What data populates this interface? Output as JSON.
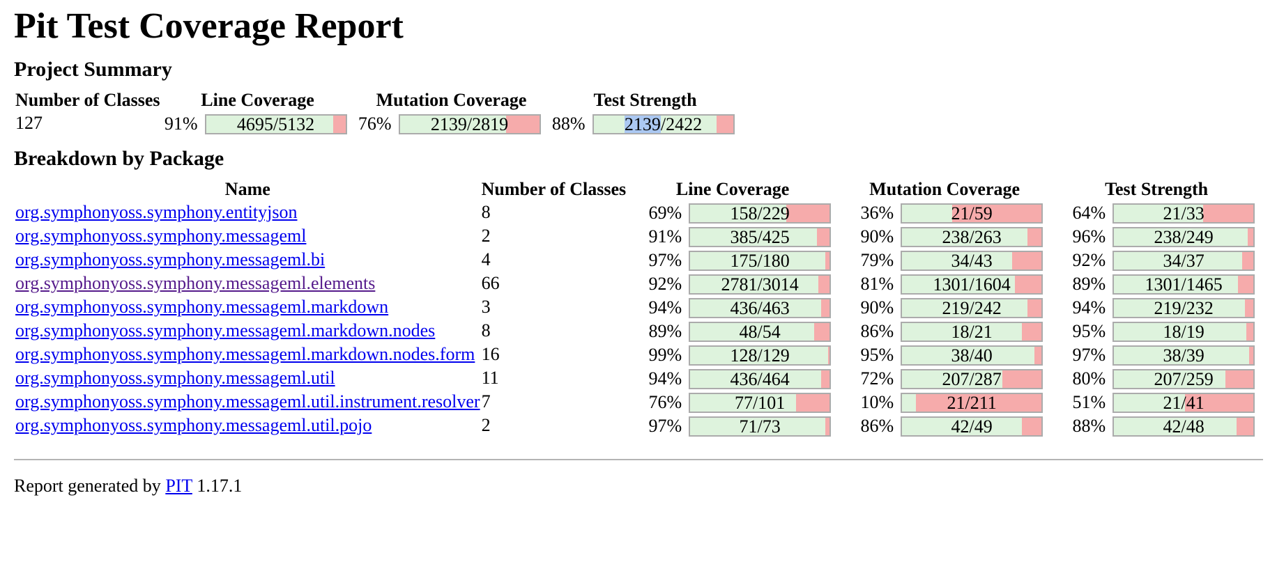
{
  "page": {
    "title": "Pit Test Coverage Report"
  },
  "colors": {
    "covered_green": "#def3dd",
    "uncovered_red": "#f6abab",
    "bar_border": "#ababab",
    "link_blue": "#0000EE",
    "link_visited_purple": "#551A8B",
    "selection_blue": "#abc8f2"
  },
  "project_summary": {
    "heading": "Project Summary",
    "columns": [
      "Number of Classes",
      "Line Coverage",
      "Mutation Coverage",
      "Test Strength"
    ],
    "number_of_classes": "127",
    "line": {
      "pct": "91%",
      "fill": 91,
      "legend": "4695/5132"
    },
    "mutation": {
      "pct": "76%",
      "fill": 76,
      "legend": "2139/2819"
    },
    "test": {
      "pct": "88%",
      "fill": 88,
      "legend_selected": "2139",
      "legend_rest": "/2422"
    }
  },
  "breakdown": {
    "heading": "Breakdown by Package",
    "columns": [
      "Name",
      "Number of Classes",
      "Line Coverage",
      "Mutation Coverage",
      "Test Strength"
    ],
    "rows": [
      {
        "name": "org.symphonyoss.symphony.entityjson",
        "visited": false,
        "classes": "8",
        "line": {
          "pct": "69%",
          "fill": 69,
          "legend": "158/229"
        },
        "mutation": {
          "pct": "36%",
          "fill": 36,
          "legend": "21/59"
        },
        "test": {
          "pct": "64%",
          "fill": 64,
          "legend": "21/33"
        }
      },
      {
        "name": "org.symphonyoss.symphony.messageml",
        "visited": false,
        "classes": "2",
        "line": {
          "pct": "91%",
          "fill": 91,
          "legend": "385/425"
        },
        "mutation": {
          "pct": "90%",
          "fill": 90,
          "legend": "238/263"
        },
        "test": {
          "pct": "96%",
          "fill": 96,
          "legend": "238/249"
        }
      },
      {
        "name": "org.symphonyoss.symphony.messageml.bi",
        "visited": false,
        "classes": "4",
        "line": {
          "pct": "97%",
          "fill": 97,
          "legend": "175/180"
        },
        "mutation": {
          "pct": "79%",
          "fill": 79,
          "legend": "34/43"
        },
        "test": {
          "pct": "92%",
          "fill": 92,
          "legend": "34/37"
        }
      },
      {
        "name": "org.symphonyoss.symphony.messageml.elements",
        "visited": true,
        "classes": "66",
        "line": {
          "pct": "92%",
          "fill": 92,
          "legend": "2781/3014"
        },
        "mutation": {
          "pct": "81%",
          "fill": 81,
          "legend": "1301/1604"
        },
        "test": {
          "pct": "89%",
          "fill": 89,
          "legend": "1301/1465"
        }
      },
      {
        "name": "org.symphonyoss.symphony.messageml.markdown",
        "visited": false,
        "classes": "3",
        "line": {
          "pct": "94%",
          "fill": 94,
          "legend": "436/463"
        },
        "mutation": {
          "pct": "90%",
          "fill": 90,
          "legend": "219/242"
        },
        "test": {
          "pct": "94%",
          "fill": 94,
          "legend": "219/232"
        }
      },
      {
        "name": "org.symphonyoss.symphony.messageml.markdown.nodes",
        "visited": false,
        "classes": "8",
        "line": {
          "pct": "89%",
          "fill": 89,
          "legend": "48/54"
        },
        "mutation": {
          "pct": "86%",
          "fill": 86,
          "legend": "18/21"
        },
        "test": {
          "pct": "95%",
          "fill": 95,
          "legend": "18/19"
        }
      },
      {
        "name": "org.symphonyoss.symphony.messageml.markdown.nodes.form",
        "visited": false,
        "classes": "16",
        "line": {
          "pct": "99%",
          "fill": 99,
          "legend": "128/129"
        },
        "mutation": {
          "pct": "95%",
          "fill": 95,
          "legend": "38/40"
        },
        "test": {
          "pct": "97%",
          "fill": 97,
          "legend": "38/39"
        }
      },
      {
        "name": "org.symphonyoss.symphony.messageml.util",
        "visited": false,
        "classes": "11",
        "line": {
          "pct": "94%",
          "fill": 94,
          "legend": "436/464"
        },
        "mutation": {
          "pct": "72%",
          "fill": 72,
          "legend": "207/287"
        },
        "test": {
          "pct": "80%",
          "fill": 80,
          "legend": "207/259"
        }
      },
      {
        "name": "org.symphonyoss.symphony.messageml.util.instrument.resolver",
        "visited": false,
        "classes": "7",
        "line": {
          "pct": "76%",
          "fill": 76,
          "legend": "77/101"
        },
        "mutation": {
          "pct": "10%",
          "fill": 10,
          "legend": "21/211"
        },
        "test": {
          "pct": "51%",
          "fill": 51,
          "legend": "21/41"
        }
      },
      {
        "name": "org.symphonyoss.symphony.messageml.util.pojo",
        "visited": false,
        "classes": "2",
        "line": {
          "pct": "97%",
          "fill": 97,
          "legend": "71/73"
        },
        "mutation": {
          "pct": "86%",
          "fill": 86,
          "legend": "42/49"
        },
        "test": {
          "pct": "88%",
          "fill": 88,
          "legend": "42/48"
        }
      }
    ]
  },
  "footer": {
    "prefix": "Report generated by ",
    "link_label": "PIT",
    "suffix": " 1.17.1"
  }
}
